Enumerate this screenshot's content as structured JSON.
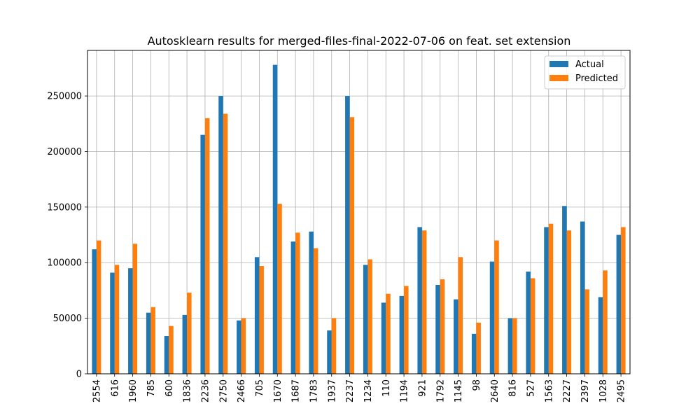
{
  "chart_data": {
    "type": "bar",
    "title": "Autosklearn results for merged-files-final-2022-07-06 on feat. set extension",
    "xlabel": "",
    "ylabel": "",
    "categories": [
      "2554",
      "616",
      "1960",
      "785",
      "600",
      "1836",
      "2236",
      "2750",
      "2466",
      "705",
      "1670",
      "1687",
      "1783",
      "1937",
      "2237",
      "1234",
      "110",
      "1194",
      "921",
      "1792",
      "1145",
      "98",
      "2640",
      "816",
      "527",
      "1563",
      "2227",
      "2397",
      "1028",
      "2495"
    ],
    "series": [
      {
        "name": "Actual",
        "color": "#1f77b4",
        "values": [
          112000,
          91000,
          95000,
          55000,
          34000,
          53000,
          215000,
          250000,
          48000,
          105000,
          278000,
          119000,
          128000,
          39000,
          250000,
          98000,
          64000,
          70000,
          132000,
          80000,
          67000,
          36000,
          101000,
          50000,
          92000,
          132000,
          151000,
          137000,
          69000,
          125000
        ]
      },
      {
        "name": "Predicted",
        "color": "#ff7f0e",
        "values": [
          120000,
          98000,
          117000,
          60000,
          43000,
          73000,
          230000,
          234000,
          50000,
          97000,
          153000,
          127000,
          113000,
          50000,
          231000,
          103000,
          72000,
          79000,
          129000,
          85000,
          105000,
          46000,
          120000,
          50000,
          86000,
          135000,
          129000,
          76000,
          93000,
          132000
        ]
      }
    ],
    "ylim": [
      0,
      291000
    ],
    "yticks": [
      0,
      50000,
      100000,
      150000,
      200000,
      250000
    ],
    "grid": true,
    "legend": "top-right"
  }
}
